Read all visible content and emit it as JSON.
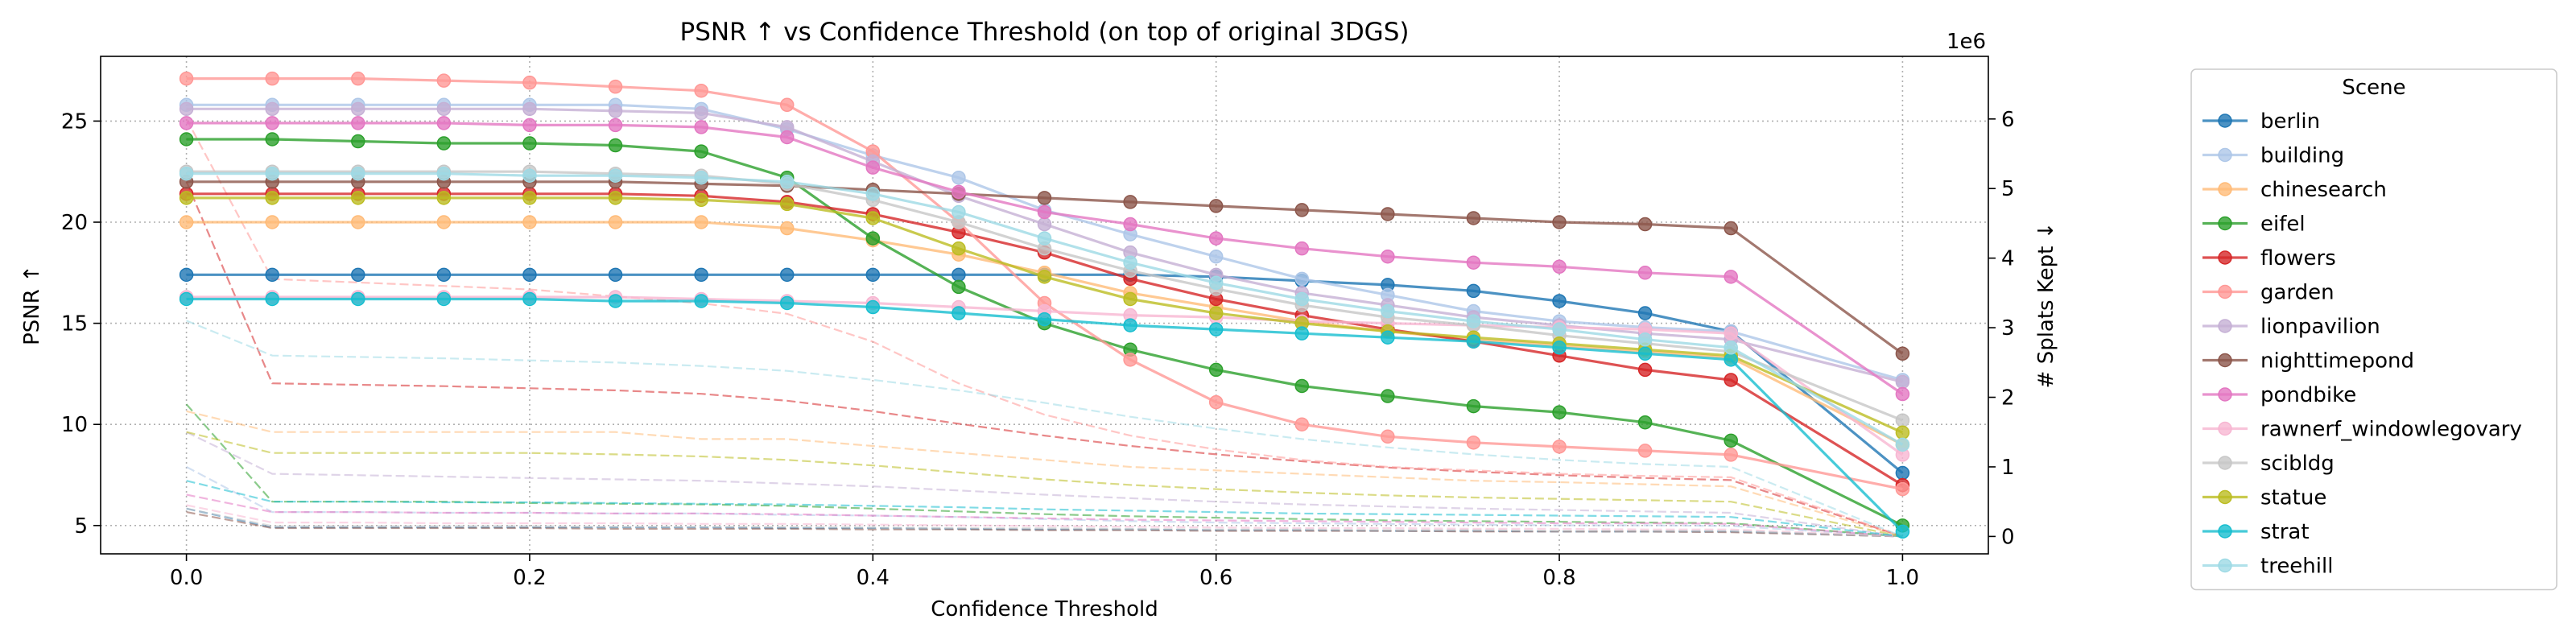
{
  "chart_data": {
    "type": "line",
    "title": "PSNR ↑ vs Confidence Threshold (on top of original 3DGS)",
    "xlabel": "Confidence Threshold",
    "ylabel": "PSNR ↑",
    "y2label": "# Splats Kept ↓",
    "y2_offset_label": "1e6",
    "xlim": [
      -0.05,
      1.05
    ],
    "ylim": [
      3.6,
      28.2
    ],
    "y2lim": [
      -0.25,
      6.9
    ],
    "x_ticks": [
      0.0,
      0.2,
      0.4,
      0.6,
      0.8,
      1.0
    ],
    "x_tick_labels": [
      "0.0",
      "0.2",
      "0.4",
      "0.6",
      "0.8",
      "1.0"
    ],
    "y_ticks": [
      5,
      10,
      15,
      20,
      25
    ],
    "y_tick_labels": [
      "5",
      "10",
      "15",
      "20",
      "25"
    ],
    "y2_ticks": [
      0,
      1,
      2,
      3,
      4,
      5,
      6
    ],
    "y2_tick_labels": [
      "0",
      "1",
      "2",
      "3",
      "4",
      "5",
      "6"
    ],
    "grid": true,
    "legend_title": "Scene",
    "legend_position": "right, outside plot",
    "x": [
      0.0,
      0.05,
      0.1,
      0.15,
      0.2,
      0.25,
      0.3,
      0.35,
      0.4,
      0.45,
      0.5,
      0.55,
      0.6,
      0.65,
      0.7,
      0.75,
      0.8,
      0.85,
      0.9,
      1.0
    ],
    "series_note": "solid lines with markers = PSNR (left axis); dashed lines = # splats kept (right axis, x1e6)",
    "series": [
      {
        "name": "berlin",
        "color": "#1f77b4",
        "psnr": [
          17.4,
          17.4,
          17.4,
          17.4,
          17.4,
          17.4,
          17.4,
          17.4,
          17.4,
          17.4,
          17.4,
          17.4,
          17.3,
          17.1,
          16.9,
          16.6,
          16.1,
          15.5,
          14.6,
          7.6
        ],
        "splats": [
          0.4,
          0.13,
          0.13,
          0.13,
          0.13,
          0.13,
          0.13,
          0.12,
          0.12,
          0.11,
          0.1,
          0.1,
          0.09,
          0.09,
          0.08,
          0.08,
          0.07,
          0.07,
          0.07,
          0.0
        ]
      },
      {
        "name": "building",
        "color": "#aec7e8",
        "psnr": [
          25.8,
          25.8,
          25.8,
          25.8,
          25.8,
          25.8,
          25.6,
          24.6,
          23.3,
          22.2,
          20.6,
          19.4,
          18.3,
          17.2,
          16.4,
          15.6,
          15.1,
          14.8,
          14.6,
          12.2
        ],
        "splats": [
          1.0,
          0.35,
          0.35,
          0.34,
          0.34,
          0.33,
          0.33,
          0.31,
          0.3,
          0.28,
          0.25,
          0.22,
          0.2,
          0.19,
          0.18,
          0.17,
          0.16,
          0.16,
          0.15,
          0.0
        ]
      },
      {
        "name": "chinesearch",
        "color": "#ffbb78",
        "psnr": [
          20.0,
          20.0,
          20.0,
          20.0,
          20.0,
          20.0,
          20.0,
          19.7,
          19.1,
          18.4,
          17.5,
          16.5,
          15.8,
          15.1,
          14.6,
          14.2,
          13.9,
          13.6,
          13.3,
          9.0
        ],
        "splats": [
          1.8,
          1.5,
          1.5,
          1.5,
          1.5,
          1.5,
          1.4,
          1.4,
          1.3,
          1.2,
          1.1,
          1.0,
          0.95,
          0.9,
          0.85,
          0.8,
          0.78,
          0.75,
          0.72,
          0.0
        ]
      },
      {
        "name": "eifel",
        "color": "#2ca02c",
        "psnr": [
          24.1,
          24.1,
          24.0,
          23.9,
          23.9,
          23.8,
          23.5,
          22.2,
          19.2,
          16.8,
          15.0,
          13.7,
          12.7,
          11.9,
          11.4,
          10.9,
          10.6,
          10.1,
          9.2,
          5.0
        ],
        "splats": [
          1.9,
          0.5,
          0.5,
          0.5,
          0.48,
          0.47,
          0.46,
          0.44,
          0.4,
          0.36,
          0.32,
          0.29,
          0.27,
          0.25,
          0.23,
          0.22,
          0.21,
          0.2,
          0.19,
          0.0
        ]
      },
      {
        "name": "flowers",
        "color": "#d62728",
        "psnr": [
          21.4,
          21.4,
          21.4,
          21.4,
          21.4,
          21.4,
          21.3,
          21.0,
          20.4,
          19.5,
          18.5,
          17.2,
          16.2,
          15.4,
          14.7,
          14.1,
          13.4,
          12.7,
          12.2,
          7.0
        ],
        "splats": [
          5.1,
          2.2,
          2.18,
          2.16,
          2.13,
          2.1,
          2.05,
          1.95,
          1.8,
          1.62,
          1.45,
          1.3,
          1.18,
          1.08,
          0.99,
          0.93,
          0.88,
          0.84,
          0.81,
          0.0
        ]
      },
      {
        "name": "garden",
        "color": "#ff9896",
        "psnr": [
          27.1,
          27.1,
          27.1,
          27.0,
          26.9,
          26.7,
          26.5,
          25.8,
          23.5,
          20.0,
          16.0,
          13.2,
          11.1,
          10.0,
          9.4,
          9.1,
          8.9,
          8.7,
          8.5,
          6.8
        ],
        "splats": [
          6.0,
          3.7,
          3.65,
          3.6,
          3.55,
          3.45,
          3.35,
          3.2,
          2.8,
          2.2,
          1.75,
          1.45,
          1.25,
          1.1,
          1.0,
          0.95,
          0.9,
          0.87,
          0.85,
          0.0
        ]
      },
      {
        "name": "lionpavilion",
        "color": "#c5b0d5",
        "psnr": [
          25.6,
          25.6,
          25.6,
          25.6,
          25.6,
          25.5,
          25.4,
          24.7,
          23.0,
          21.3,
          19.9,
          18.5,
          17.4,
          16.5,
          15.9,
          15.3,
          14.9,
          14.5,
          14.2,
          12.1
        ],
        "splats": [
          1.5,
          0.9,
          0.88,
          0.86,
          0.84,
          0.82,
          0.8,
          0.76,
          0.72,
          0.66,
          0.6,
          0.55,
          0.5,
          0.46,
          0.43,
          0.4,
          0.38,
          0.36,
          0.34,
          0.0
        ]
      },
      {
        "name": "nighttimepond",
        "color": "#8c564b",
        "psnr": [
          22.0,
          22.0,
          22.0,
          22.0,
          22.0,
          22.0,
          21.9,
          21.8,
          21.6,
          21.4,
          21.2,
          21.0,
          20.8,
          20.6,
          20.4,
          20.2,
          20.0,
          19.9,
          19.7,
          13.5
        ],
        "splats": [
          0.35,
          0.12,
          0.12,
          0.12,
          0.12,
          0.11,
          0.11,
          0.11,
          0.1,
          0.1,
          0.09,
          0.09,
          0.08,
          0.08,
          0.08,
          0.07,
          0.07,
          0.07,
          0.06,
          0.0
        ]
      },
      {
        "name": "pondbike",
        "color": "#e377c2",
        "psnr": [
          24.9,
          24.9,
          24.9,
          24.9,
          24.8,
          24.8,
          24.7,
          24.2,
          22.7,
          21.5,
          20.5,
          19.9,
          19.2,
          18.7,
          18.3,
          18.0,
          17.8,
          17.5,
          17.3,
          11.5
        ],
        "splats": [
          0.6,
          0.35,
          0.35,
          0.34,
          0.34,
          0.33,
          0.33,
          0.32,
          0.3,
          0.28,
          0.26,
          0.24,
          0.23,
          0.22,
          0.21,
          0.2,
          0.19,
          0.19,
          0.18,
          0.0
        ]
      },
      {
        "name": "rawnerf_windowlegovary",
        "color": "#f7b6d2",
        "psnr": [
          16.3,
          16.3,
          16.3,
          16.3,
          16.3,
          16.3,
          16.2,
          16.1,
          16.0,
          15.8,
          15.6,
          15.4,
          15.3,
          15.1,
          15.0,
          14.9,
          14.8,
          14.7,
          14.5,
          8.5
        ],
        "splats": [
          0.45,
          0.2,
          0.2,
          0.19,
          0.19,
          0.19,
          0.18,
          0.18,
          0.17,
          0.16,
          0.15,
          0.14,
          0.13,
          0.12,
          0.12,
          0.11,
          0.11,
          0.1,
          0.1,
          0.0
        ]
      },
      {
        "name": "scibldg",
        "color": "#c7c7c7",
        "psnr": [
          22.5,
          22.5,
          22.5,
          22.5,
          22.5,
          22.4,
          22.3,
          21.9,
          21.1,
          20.0,
          18.7,
          17.6,
          16.7,
          15.9,
          15.3,
          14.9,
          14.4,
          14.0,
          13.6,
          10.2
        ],
        "splats": [
          0.4,
          0.15,
          0.15,
          0.15,
          0.15,
          0.14,
          0.14,
          0.14,
          0.13,
          0.12,
          0.12,
          0.11,
          0.1,
          0.1,
          0.09,
          0.09,
          0.08,
          0.08,
          0.08,
          0.0
        ]
      },
      {
        "name": "statue",
        "color": "#bcbd22",
        "psnr": [
          21.2,
          21.2,
          21.2,
          21.2,
          21.2,
          21.2,
          21.1,
          20.9,
          20.2,
          18.7,
          17.3,
          16.2,
          15.5,
          15.0,
          14.6,
          14.3,
          14.0,
          13.7,
          13.4,
          9.6
        ],
        "splats": [
          1.5,
          1.2,
          1.2,
          1.2,
          1.2,
          1.18,
          1.15,
          1.1,
          1.02,
          0.92,
          0.82,
          0.74,
          0.68,
          0.63,
          0.59,
          0.56,
          0.54,
          0.52,
          0.5,
          0.0
        ]
      },
      {
        "name": "strat",
        "color": "#17becf",
        "psnr": [
          16.2,
          16.2,
          16.2,
          16.2,
          16.2,
          16.1,
          16.1,
          16.0,
          15.8,
          15.5,
          15.2,
          14.9,
          14.7,
          14.5,
          14.3,
          14.1,
          13.8,
          13.5,
          13.2,
          4.7
        ],
        "splats": [
          0.8,
          0.5,
          0.5,
          0.49,
          0.49,
          0.48,
          0.47,
          0.46,
          0.44,
          0.42,
          0.39,
          0.37,
          0.35,
          0.33,
          0.32,
          0.31,
          0.3,
          0.29,
          0.28,
          0.0
        ]
      },
      {
        "name": "treehill",
        "color": "#9edae5",
        "psnr": [
          22.4,
          22.4,
          22.4,
          22.4,
          22.3,
          22.3,
          22.2,
          22.0,
          21.4,
          20.5,
          19.2,
          18.0,
          17.0,
          16.2,
          15.6,
          15.1,
          14.7,
          14.2,
          13.8,
          9.0
        ],
        "splats": [
          3.1,
          2.6,
          2.58,
          2.56,
          2.53,
          2.5,
          2.45,
          2.38,
          2.25,
          2.1,
          1.92,
          1.72,
          1.55,
          1.4,
          1.28,
          1.18,
          1.1,
          1.04,
          1.0,
          0.0
        ]
      }
    ]
  }
}
